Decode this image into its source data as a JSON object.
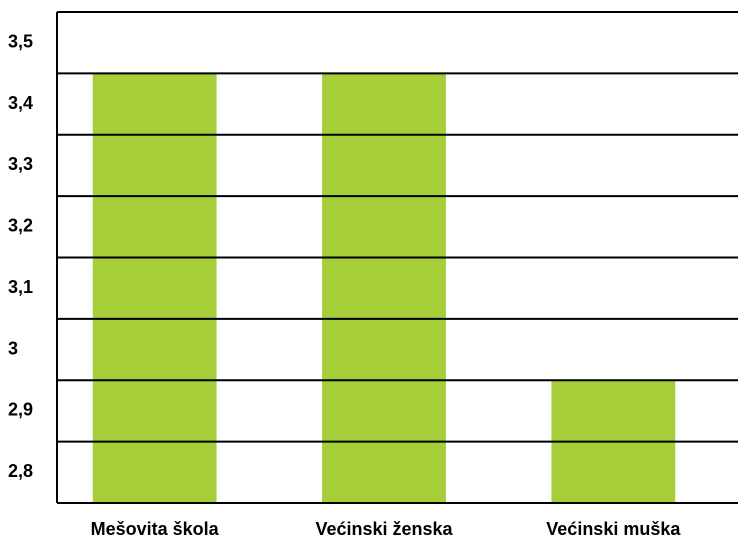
{
  "chart_data": {
    "type": "bar",
    "categories": [
      "Mešovita škola",
      "Većinski ženska",
      "Većinski muška"
    ],
    "values": [
      3.4,
      3.4,
      2.9
    ],
    "color": "#a6ce39",
    "ylim": [
      2.7,
      3.5
    ],
    "yticks": [
      {
        "value": 2.8,
        "label": "2,8"
      },
      {
        "value": 2.9,
        "label": "2,9"
      },
      3,
      {
        "value": 3.1,
        "label": "3,1"
      },
      {
        "value": 3.2,
        "label": "3,2"
      },
      {
        "value": 3.3,
        "label": "3,3"
      },
      {
        "value": 3.4,
        "label": "3,4"
      },
      {
        "value": 3.5,
        "label": "3,5"
      }
    ],
    "grid": true
  }
}
